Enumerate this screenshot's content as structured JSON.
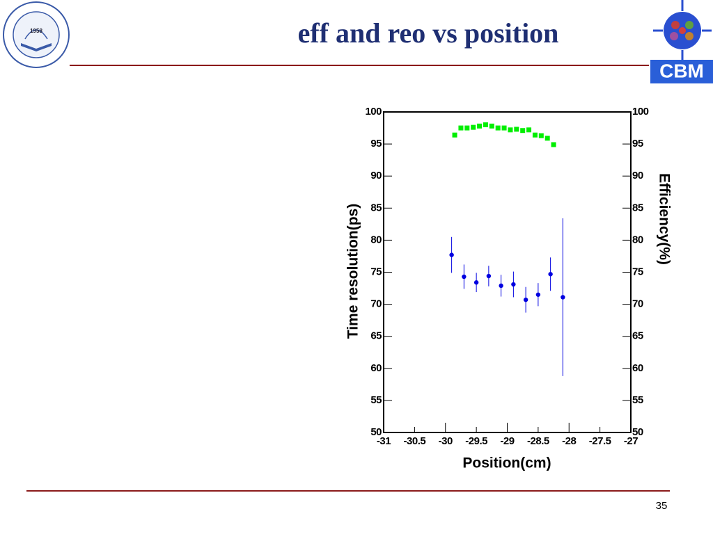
{
  "slide": {
    "title": "eff and reo vs position",
    "page_number": "35",
    "logo_left_year": "1958",
    "logo_right_text": "CBM"
  },
  "chart_data": {
    "type": "scatter",
    "x_label": "Position(cm)",
    "y_label": "Time resolution(ps)",
    "y2_label": "Efficiency(%)",
    "xlim": [
      -31,
      -27
    ],
    "xticks": [
      -31,
      -30.5,
      -30,
      -29.5,
      -29,
      -28.5,
      -28,
      -27.5,
      -27
    ],
    "ylim": [
      50,
      100
    ],
    "yticks": [
      50,
      55,
      60,
      65,
      70,
      75,
      80,
      85,
      90,
      95,
      100
    ],
    "y2lim": [
      50,
      100
    ],
    "y2ticks": [
      50,
      55,
      60,
      65,
      70,
      75,
      80,
      85,
      90,
      95,
      100
    ],
    "series": [
      {
        "name": "Time resolution",
        "color": "#0000e0",
        "marker": "circle",
        "x": [
          -29.9,
          -29.7,
          -29.5,
          -29.3,
          -29.1,
          -28.9,
          -28.7,
          -28.5,
          -28.3,
          -28.1
        ],
        "values": [
          77.7,
          74.3,
          73.4,
          74.4,
          72.9,
          73.1,
          70.7,
          71.5,
          74.7,
          71.1
        ],
        "errors": [
          2.8,
          1.9,
          1.5,
          1.6,
          1.7,
          2.0,
          2.0,
          1.8,
          2.6,
          12.3
        ]
      },
      {
        "name": "Efficiency",
        "color": "#00ee00",
        "marker": "square",
        "axis": "y2",
        "x": [
          -29.85,
          -29.75,
          -29.65,
          -29.55,
          -29.45,
          -29.35,
          -29.25,
          -29.15,
          -29.05,
          -28.95,
          -28.85,
          -28.75,
          -28.65,
          -28.55,
          -28.45,
          -28.35,
          -28.25
        ],
        "values": [
          96.4,
          97.5,
          97.5,
          97.6,
          97.8,
          98.0,
          97.8,
          97.5,
          97.5,
          97.2,
          97.3,
          97.1,
          97.2,
          96.4,
          96.3,
          95.9,
          94.9
        ]
      }
    ]
  }
}
